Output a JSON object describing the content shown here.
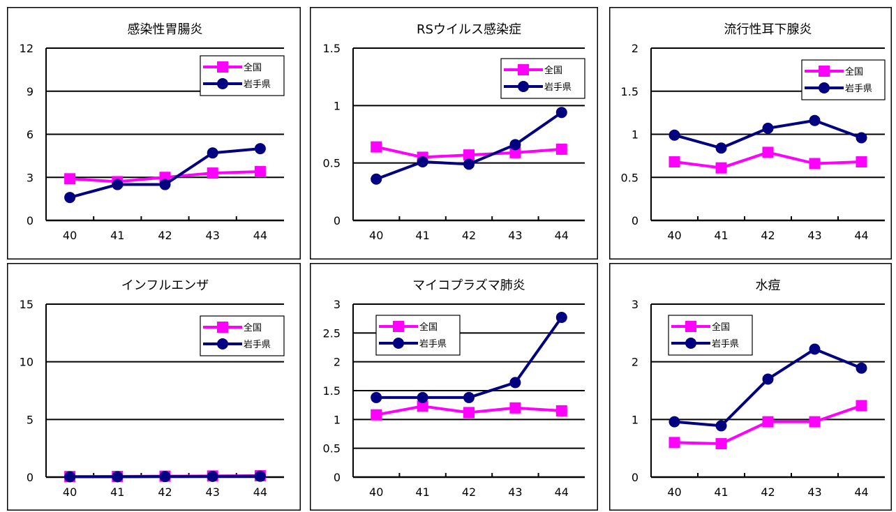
{
  "colors": {
    "national": "#ff00ff",
    "iwate": "#000080",
    "frame": "#000000",
    "grid": "#000000"
  },
  "chart_data": [
    {
      "type": "line",
      "title": "感染性胃腸炎",
      "x": [
        "40",
        "41",
        "42",
        "43",
        "44"
      ],
      "ylim": [
        0,
        12
      ],
      "yticks": [
        "0",
        "3",
        "6",
        "9",
        "12"
      ],
      "legend_position": "top-right",
      "series": [
        {
          "name": "全国",
          "values": [
            2.9,
            2.7,
            3.0,
            3.3,
            3.4
          ]
        },
        {
          "name": "岩手県",
          "values": [
            1.6,
            2.5,
            2.5,
            4.7,
            5.0
          ]
        }
      ]
    },
    {
      "type": "line",
      "title": "RSウイルス感染症",
      "x": [
        "40",
        "41",
        "42",
        "43",
        "44"
      ],
      "ylim": [
        0,
        1.5
      ],
      "yticks": [
        "0",
        "0.5",
        "1",
        "1.5"
      ],
      "legend_position": "top-right",
      "series": [
        {
          "name": "全国",
          "values": [
            0.64,
            0.55,
            0.57,
            0.59,
            0.62
          ]
        },
        {
          "name": "岩手県",
          "values": [
            0.36,
            0.51,
            0.49,
            0.66,
            0.94
          ]
        }
      ]
    },
    {
      "type": "line",
      "title": "流行性耳下腺炎",
      "x": [
        "40",
        "41",
        "42",
        "43",
        "44"
      ],
      "ylim": [
        0,
        2
      ],
      "yticks": [
        "0",
        "0.5",
        "1",
        "1.5",
        "2"
      ],
      "legend_position": "top-right",
      "series": [
        {
          "name": "全国",
          "values": [
            0.68,
            0.61,
            0.79,
            0.66,
            0.68
          ]
        },
        {
          "name": "岩手県",
          "values": [
            0.99,
            0.84,
            1.07,
            1.16,
            0.96
          ]
        }
      ]
    },
    {
      "type": "line",
      "title": "インフルエンザ",
      "x": [
        "40",
        "41",
        "42",
        "43",
        "44"
      ],
      "ylim": [
        0,
        15
      ],
      "yticks": [
        "0",
        "5",
        "10",
        "15"
      ],
      "legend_position": "top-right",
      "series": [
        {
          "name": "全国",
          "values": [
            0.05,
            0.06,
            0.08,
            0.1,
            0.12
          ]
        },
        {
          "name": "岩手県",
          "values": [
            0.03,
            0.03,
            0.05,
            0.07,
            0.08
          ]
        }
      ]
    },
    {
      "type": "line",
      "title": "マイコプラズマ肺炎",
      "x": [
        "40",
        "41",
        "42",
        "43",
        "44"
      ],
      "ylim": [
        0,
        3
      ],
      "yticks": [
        "0",
        "0.5",
        "1",
        "1.5",
        "2",
        "2.5",
        "3"
      ],
      "legend_position": "top-left",
      "series": [
        {
          "name": "全国",
          "values": [
            1.08,
            1.23,
            1.12,
            1.2,
            1.15
          ]
        },
        {
          "name": "岩手県",
          "values": [
            1.38,
            1.38,
            1.38,
            1.64,
            2.77
          ]
        }
      ]
    },
    {
      "type": "line",
      "title": "水痘",
      "x": [
        "40",
        "41",
        "42",
        "43",
        "44"
      ],
      "ylim": [
        0,
        3
      ],
      "yticks": [
        "0",
        "1",
        "2",
        "3"
      ],
      "legend_position": "top-left",
      "series": [
        {
          "name": "全国",
          "values": [
            0.6,
            0.58,
            0.96,
            0.96,
            1.24
          ]
        },
        {
          "name": "岩手県",
          "values": [
            0.96,
            0.89,
            1.7,
            2.22,
            1.89
          ]
        }
      ]
    }
  ]
}
